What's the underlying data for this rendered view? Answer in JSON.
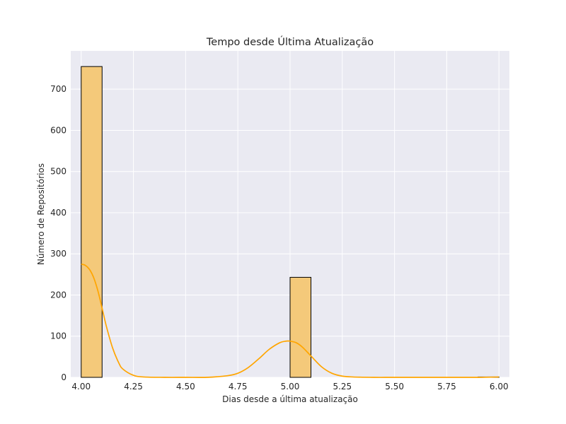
{
  "chart_data": {
    "type": "bar",
    "title": "Tempo desde Última Atualização",
    "xlabel": "Dias desde a última atualização",
    "ylabel": "Número de Repositórios",
    "xlim": [
      3.95,
      6.05
    ],
    "ylim": [
      0,
      793
    ],
    "xticks": [
      4.0,
      4.25,
      4.5,
      4.75,
      5.0,
      5.25,
      5.5,
      5.75,
      6.0
    ],
    "xtick_labels": [
      "4.00",
      "4.25",
      "4.50",
      "4.75",
      "5.00",
      "5.25",
      "5.50",
      "5.75",
      "6.00"
    ],
    "yticks": [
      0,
      100,
      200,
      300,
      400,
      500,
      600,
      700
    ],
    "ytick_labels": [
      "0",
      "100",
      "200",
      "300",
      "400",
      "500",
      "600",
      "700"
    ],
    "grid": true,
    "bars": [
      {
        "x0": 4.0,
        "x1": 4.1,
        "value": 755
      },
      {
        "x0": 5.0,
        "x1": 5.1,
        "value": 243
      },
      {
        "x0": 5.9,
        "x1": 6.0,
        "value": 1
      }
    ],
    "kde": {
      "x": [
        4.0,
        4.02,
        4.04,
        4.06,
        4.08,
        4.1,
        4.12,
        4.15,
        4.18,
        4.2,
        4.25,
        4.3,
        4.4,
        4.5,
        4.6,
        4.7,
        4.75,
        4.8,
        4.85,
        4.9,
        4.95,
        4.98,
        5.0,
        5.03,
        5.06,
        5.1,
        5.15,
        5.2,
        5.25,
        5.3,
        5.4,
        5.5,
        5.7,
        5.9,
        6.0
      ],
      "y": [
        275,
        272,
        262,
        242,
        210,
        168,
        125,
        72,
        35,
        20,
        5,
        1,
        0,
        0,
        0,
        4,
        10,
        24,
        45,
        68,
        84,
        88,
        88,
        84,
        73,
        52,
        26,
        10,
        3,
        1,
        0,
        0,
        0,
        0,
        1
      ]
    },
    "colors": {
      "bar_fill": "#f4c97a",
      "bar_edge": "#000000",
      "kde_line": "#ffa500",
      "plot_background": "#eaeaf2",
      "grid": "#ffffff"
    }
  }
}
